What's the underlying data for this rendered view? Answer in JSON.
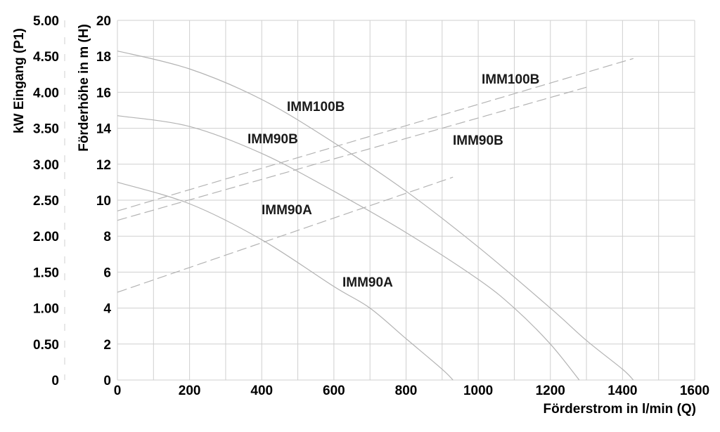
{
  "chart_data": {
    "type": "line",
    "title": "",
    "xlabel": "Förderstrom in l/min (Q)",
    "ylabel": "Förderhöhe in m (H)",
    "y2label": "kW Eingang (P1)",
    "xlim": [
      0,
      1600
    ],
    "ylim": [
      0,
      20
    ],
    "y2lim": [
      0,
      5
    ],
    "x_ticks": [
      "0",
      "200",
      "400",
      "600",
      "800",
      "1000",
      "1200",
      "1400",
      "1600"
    ],
    "y_ticks": [
      "0",
      "2",
      "4",
      "6",
      "8",
      "10",
      "12",
      "14",
      "16",
      "18",
      "20"
    ],
    "y2_ticks": [
      "0",
      "0.50",
      "1.00",
      "1.50",
      "2.00",
      "2.50",
      "3.00",
      "3.50",
      "4.00",
      "4.50",
      "5.00"
    ],
    "grid": true,
    "head_series": [
      {
        "name": "IMM100B",
        "axis": "H",
        "x": [
          0,
          200,
          400,
          600,
          800,
          1000,
          1200,
          1300,
          1400,
          1430
        ],
        "y": [
          18.3,
          17.3,
          15.6,
          13.2,
          10.5,
          7.4,
          4.0,
          2.2,
          0.6,
          0
        ]
      },
      {
        "name": "IMM90B",
        "axis": "H",
        "x": [
          0,
          200,
          400,
          600,
          800,
          1000,
          1100,
          1200,
          1280
        ],
        "y": [
          14.7,
          14.1,
          12.6,
          10.5,
          8.2,
          5.6,
          4.0,
          2.0,
          0
        ]
      },
      {
        "name": "IMM90A",
        "axis": "H",
        "x": [
          0,
          200,
          400,
          600,
          700,
          800,
          900,
          930
        ],
        "y": [
          11.0,
          9.8,
          7.8,
          5.2,
          4.0,
          2.3,
          0.6,
          0
        ]
      }
    ],
    "power_series": [
      {
        "name": "IMM100B",
        "axis": "P1",
        "x": [
          0,
          1430
        ],
        "y": [
          2.35,
          4.47
        ]
      },
      {
        "name": "IMM90B",
        "axis": "P1",
        "x": [
          0,
          1300
        ],
        "y": [
          2.22,
          4.07
        ]
      },
      {
        "name": "IMM90A",
        "axis": "P1",
        "x": [
          0,
          930
        ],
        "y": [
          1.22,
          2.82
        ]
      }
    ],
    "labels": [
      {
        "text": "IMM100B",
        "series": "IMM100B",
        "kind": "head"
      },
      {
        "text": "IMM90B",
        "series": "IMM90B",
        "kind": "head"
      },
      {
        "text": "IMM90A",
        "series": "IMM90A",
        "kind": "head"
      },
      {
        "text": "IMM100B",
        "series": "IMM100B",
        "kind": "power"
      },
      {
        "text": "IMM90B",
        "series": "IMM90B",
        "kind": "power"
      },
      {
        "text": "IMM90A",
        "series": "IMM90A",
        "kind": "power"
      }
    ]
  }
}
